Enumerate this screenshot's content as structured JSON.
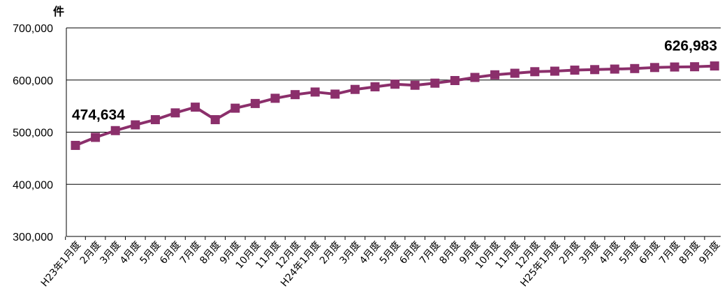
{
  "chart_data": {
    "type": "line",
    "ylabel": "件",
    "ylim": [
      300000,
      700000
    ],
    "yticks": [
      300000,
      400000,
      500000,
      600000,
      700000
    ],
    "ytick_labels": [
      "300,000",
      "400,000",
      "500,000",
      "600,000",
      "700,000"
    ],
    "grid": "horizontal",
    "colors": {
      "series": "#8b2f6b",
      "grid": "#000000",
      "axis": "#000000"
    },
    "categories": [
      "H23年1月度",
      "2月度",
      "3月度",
      "4月度",
      "5月度",
      "6月度",
      "7月度",
      "8月度",
      "9月度",
      "10月度",
      "11月度",
      "12月度",
      "H24年1月度",
      "2月度",
      "3月度",
      "4月度",
      "5月度",
      "6月度",
      "7月度",
      "8月度",
      "9月度",
      "10月度",
      "11月度",
      "12月度",
      "H25年1月度",
      "2月度",
      "3月度",
      "4月度",
      "5月度",
      "6月度",
      "7月度",
      "8月度",
      "9月度"
    ],
    "series": [
      {
        "values": [
          474634,
          490000,
          503000,
          514000,
          524000,
          537000,
          548000,
          524000,
          546000,
          555000,
          565000,
          572000,
          577000,
          573000,
          582000,
          587000,
          592000,
          590000,
          594000,
          599000,
          605000,
          610000,
          613000,
          616000,
          617000,
          619000,
          620000,
          621000,
          622000,
          624000,
          625000,
          625500,
          626983
        ],
        "marker": "square"
      }
    ],
    "annotations": [
      {
        "text": "474,634",
        "index": 0
      },
      {
        "text": "626,983",
        "index": 32
      }
    ]
  }
}
